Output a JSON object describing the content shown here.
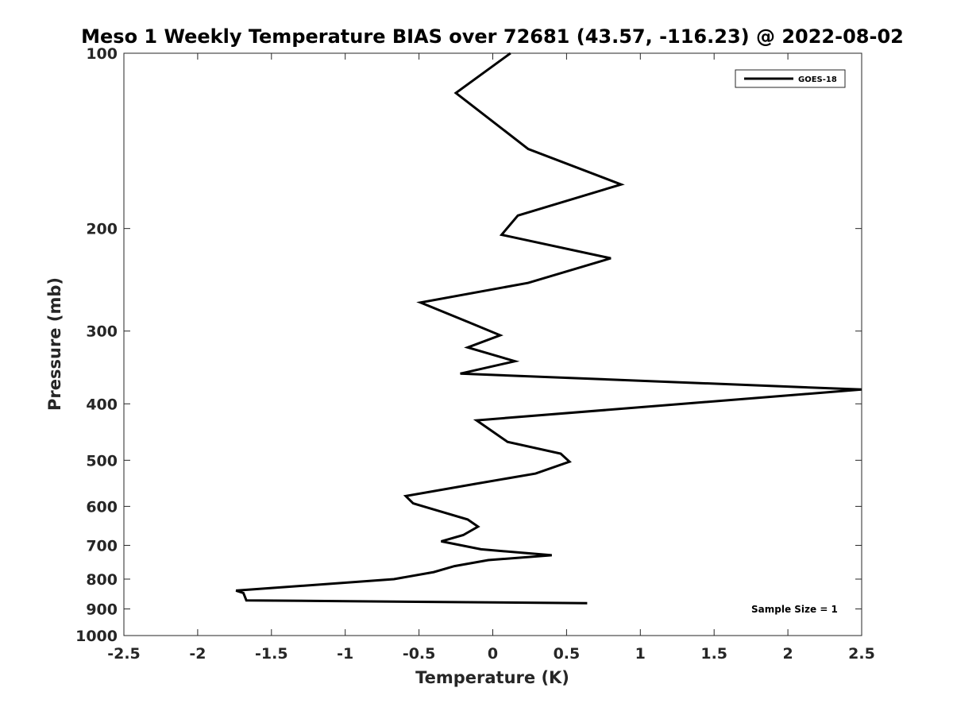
{
  "chart_data": {
    "type": "line",
    "title": "Meso 1 Weekly Temperature BIAS over 72681 (43.57, -116.23) @ 2022-08-02",
    "xlabel": "Temperature (K)",
    "ylabel": "Pressure (mb)",
    "xlim": [
      -2.5,
      2.5
    ],
    "ylim": [
      100,
      1000
    ],
    "y_scale": "log",
    "y_reversed": true,
    "grid": false,
    "x_ticks": [
      -2.5,
      -2,
      -1.5,
      -1,
      -0.5,
      0,
      0.5,
      1,
      1.5,
      2,
      2.5
    ],
    "x_tick_labels": [
      "-2.5",
      "-2",
      "-1.5",
      "-1",
      "-0.5",
      "0",
      "0.5",
      "1",
      "1.5",
      "2",
      "2.5"
    ],
    "y_ticks": [
      100,
      200,
      300,
      400,
      500,
      600,
      700,
      800,
      900,
      1000
    ],
    "y_tick_labels": [
      "100",
      "200",
      "300",
      "400",
      "500",
      "600",
      "700",
      "800",
      "900",
      "1000"
    ],
    "legend": {
      "position": "top-right",
      "entries": [
        "GOES-18"
      ]
    },
    "annotation": "Sample Size = 1",
    "series": [
      {
        "name": "GOES-18",
        "color": "#000000",
        "x": [
          0.12,
          -0.25,
          0.24,
          0.87,
          0.17,
          0.06,
          0.8,
          0.24,
          -0.49,
          -0.16,
          0.05,
          -0.17,
          0.15,
          -0.22,
          2.5,
          -0.11,
          0.1,
          0.46,
          0.52,
          0.29,
          -0.12,
          -0.59,
          -0.54,
          -0.17,
          -0.1,
          -0.2,
          -0.35,
          -0.08,
          0.4,
          -0.03,
          -0.26,
          -0.4,
          -0.67,
          -1.74,
          -1.69,
          -1.67,
          0.64
        ],
        "y": [
          100,
          117,
          146,
          168,
          190,
          205,
          225,
          248,
          268,
          290,
          305,
          320,
          338,
          355,
          378,
          427,
          465,
          487,
          503,
          527,
          549,
          576,
          593,
          632,
          650,
          672,
          689,
          711,
          728,
          742,
          760,
          778,
          800,
          837,
          845,
          870,
          880
        ]
      }
    ]
  }
}
